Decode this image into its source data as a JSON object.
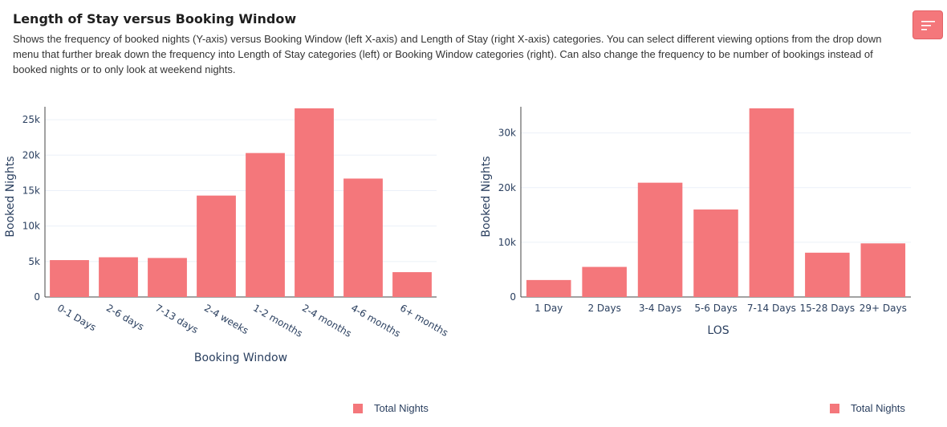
{
  "header": {
    "title": "Length of Stay versus Booking Window",
    "description": "Shows the frequency of booked nights (Y-axis) versus Booking Window (left X-axis) and Length of Stay (right X-axis) categories. You can select different viewing options from the drop down menu that further break down the frequency into Length of Stay categories (left) or Booking Window categories (right). Can also change the frequency to be number of bookings instead of booked nights or to only look at weekend nights.",
    "menu_icon": "filter-menu-icon"
  },
  "colors": {
    "bar": "#f4777b",
    "grid": "#ebf0f8",
    "axis_text": "#2a3f5f",
    "menu_button": "#f4777b"
  },
  "chart_data": [
    {
      "type": "bar",
      "categories": [
        "0-1 Days",
        "2-6 days",
        "7-13 days",
        "2-4 weeks",
        "1-2 months",
        "2-4 months",
        "4-6 months",
        "6+ months"
      ],
      "series": [
        {
          "name": "Total Nights",
          "values": [
            5200,
            5600,
            5500,
            14300,
            20300,
            26600,
            16700,
            3500
          ]
        }
      ],
      "title": "",
      "xlabel": "Booking Window",
      "ylabel": "Booked Nights",
      "ylim": [
        0,
        26600
      ],
      "yticks": [
        0,
        5000,
        10000,
        15000,
        20000,
        25000
      ],
      "ytick_labels": [
        "0",
        "5k",
        "10k",
        "15k",
        "20k",
        "25k"
      ],
      "grid": true,
      "legend": "bottom"
    },
    {
      "type": "bar",
      "categories": [
        "1 Day",
        "2 Days",
        "3-4 Days",
        "5-6 Days",
        "7-14 Days",
        "15-28 Days",
        "29+ Days"
      ],
      "series": [
        {
          "name": "Total Nights",
          "values": [
            3100,
            5500,
            20900,
            16000,
            34500,
            8100,
            9800
          ]
        }
      ],
      "title": "",
      "xlabel": "LOS",
      "ylabel": "Booked Nights",
      "ylim": [
        0,
        34500
      ],
      "yticks": [
        0,
        10000,
        20000,
        30000
      ],
      "ytick_labels": [
        "0",
        "10k",
        "20k",
        "30k"
      ],
      "grid": true,
      "legend": "bottom-right"
    }
  ]
}
